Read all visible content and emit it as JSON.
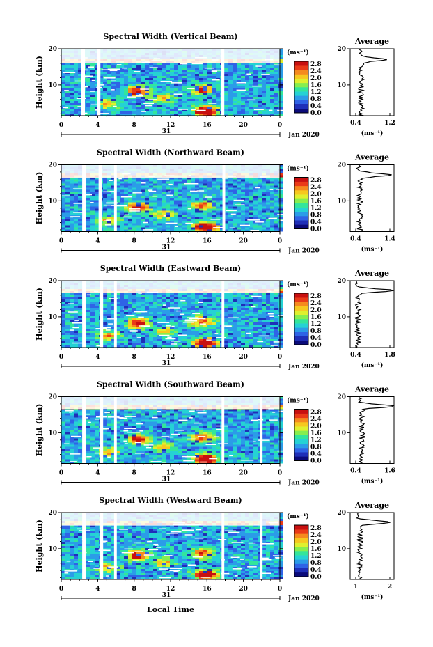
{
  "figure": {
    "common": {
      "y_label": "Height (km)",
      "x_label": "Local Time",
      "x_ticks": [
        "0",
        "4",
        "8",
        "12",
        "16",
        "20",
        "0"
      ],
      "day_label": "31",
      "month_label": "Jan 2020",
      "colorbar_unit": "(ms⁻¹)",
      "colorbar_ticks": [
        "0.0",
        "0.4",
        "0.8",
        "1.2",
        "1.6",
        "2.0",
        "2.4",
        "2.8"
      ],
      "colorbar_colors": [
        "#0b0b7a",
        "#1f2fb8",
        "#2f63e6",
        "#2b9ce8",
        "#25d2d4",
        "#33e59b",
        "#86ee4f",
        "#dff02e",
        "#f6c81f",
        "#f58a1e",
        "#ea3a18",
        "#c81010"
      ],
      "y_ticks": [
        "20",
        "10"
      ],
      "avg_title": "Average",
      "avg_unit": "(ms⁻¹)",
      "background_color": "#2b3fc8"
    },
    "chart_data": [
      {
        "type": "heatmap",
        "title": "Spectral Width (Vertical Beam)",
        "x_range_hours": [
          0,
          24
        ],
        "ylim_km": [
          1.5,
          20
        ],
        "gaps_hours": [
          [
            2.2,
            2.6
          ],
          [
            3.9,
            4.3
          ],
          [
            17.5,
            17.9
          ]
        ],
        "clear_band_km": [
          17.6,
          20
        ],
        "average": {
          "xlim": [
            0.4,
            1.2
          ],
          "x_ticks": [
            "0.4",
            "1.2"
          ],
          "y_ticks": [
            "20",
            "10"
          ],
          "peak_height_km": 17.0,
          "peak_value": 1.05,
          "baseline_value": 0.6
        }
      },
      {
        "type": "heatmap",
        "title": "Spectral Width (Northward Beam)",
        "x_range_hours": [
          0,
          24
        ],
        "ylim_km": [
          1.5,
          20
        ],
        "gaps_hours": [
          [
            2.3,
            2.7
          ],
          [
            4.1,
            4.5
          ],
          [
            5.8,
            6.1
          ],
          [
            17.7,
            18.0
          ]
        ],
        "clear_band_km": [
          18.0,
          20
        ],
        "average": {
          "xlim": [
            0.4,
            1.4
          ],
          "x_ticks": [
            "0.4",
            "1.4"
          ],
          "y_ticks": [
            "20",
            "10"
          ],
          "peak_height_km": 17.2,
          "peak_value": 1.35,
          "baseline_value": 0.62
        }
      },
      {
        "type": "heatmap",
        "title": "Spectral Width (Eastward Beam)",
        "x_range_hours": [
          0,
          24
        ],
        "ylim_km": [
          1.5,
          20
        ],
        "gaps_hours": [
          [
            2.3,
            2.7
          ],
          [
            4.2,
            4.6
          ],
          [
            5.8,
            6.1
          ],
          [
            17.6,
            17.9
          ]
        ],
        "clear_band_km": [
          18.2,
          20
        ],
        "average": {
          "xlim": [
            0.4,
            1.8
          ],
          "x_ticks": [
            "0.4",
            "1.8"
          ],
          "y_ticks": [
            "20",
            "10"
          ],
          "peak_height_km": 17.3,
          "peak_value": 1.75,
          "baseline_value": 0.65
        }
      },
      {
        "type": "heatmap",
        "title": "Spectral Width (Southward Beam)",
        "x_range_hours": [
          0,
          24
        ],
        "ylim_km": [
          1.5,
          20
        ],
        "gaps_hours": [
          [
            2.3,
            2.7
          ],
          [
            4.2,
            4.6
          ],
          [
            5.8,
            6.1
          ],
          [
            17.6,
            17.9
          ],
          [
            21.8,
            22.1
          ]
        ],
        "clear_band_km": [
          18.2,
          20
        ],
        "average": {
          "xlim": [
            0.4,
            1.6
          ],
          "x_ticks": [
            "0.4",
            "1.6"
          ],
          "y_ticks": [
            "20",
            "10"
          ],
          "peak_height_km": 17.4,
          "peak_value": 1.55,
          "baseline_value": 0.72
        }
      },
      {
        "type": "heatmap",
        "title": "Spectral Width (Westward Beam)",
        "x_range_hours": [
          0,
          24
        ],
        "ylim_km": [
          1.5,
          20
        ],
        "gaps_hours": [
          [
            2.3,
            2.7
          ],
          [
            4.2,
            4.6
          ],
          [
            5.8,
            6.1
          ],
          [
            17.6,
            17.9
          ],
          [
            21.8,
            22.1
          ]
        ],
        "clear_band_km": [
          18.0,
          20
        ],
        "average": {
          "xlim": [
            0.3,
            2.3
          ],
          "x_ticks": [
            "1",
            "2"
          ],
          "y_ticks": [
            "20",
            "10"
          ],
          "peak_height_km": 17.3,
          "peak_value": 2.2,
          "baseline_value": 0.75
        }
      }
    ]
  }
}
